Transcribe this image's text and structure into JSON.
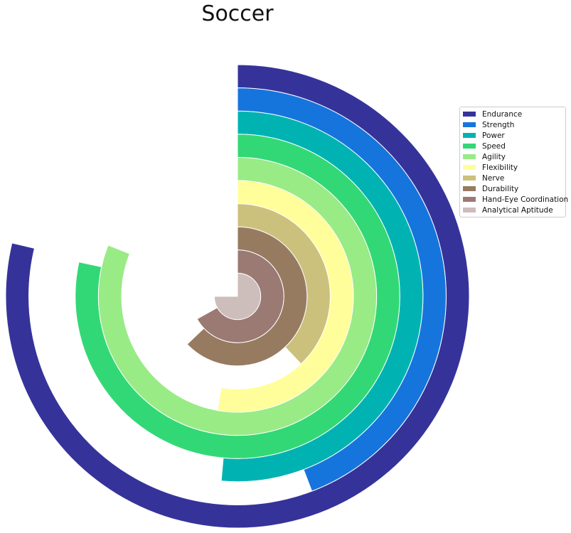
{
  "chart_data": {
    "type": "radial-bar",
    "title": "Soccer",
    "legend_position": "right",
    "grid": false,
    "value_range": [
      0,
      100
    ],
    "series": [
      {
        "name": "Endurance",
        "value": 78.7,
        "color": "#35339a"
      },
      {
        "name": "Strength",
        "value": 44.2,
        "color": "#1675dc"
      },
      {
        "name": "Power",
        "value": 51.4,
        "color": "#00b3b2"
      },
      {
        "name": "Speed",
        "value": 78.4,
        "color": "#33d876"
      },
      {
        "name": "Agility",
        "value": 81.0,
        "color": "#99eb86"
      },
      {
        "name": "Flexibility",
        "value": 52.8,
        "color": "#fffe9a"
      },
      {
        "name": "Nerve",
        "value": 38.0,
        "color": "#ccc07d"
      },
      {
        "name": "Durability",
        "value": 62.9,
        "color": "#977b61"
      },
      {
        "name": "Hand-Eye Coordination",
        "value": 66.9,
        "color": "#9b7a74"
      },
      {
        "name": "Analytical Aptitude",
        "value": 75.0,
        "color": "#cdbdbb"
      }
    ]
  }
}
